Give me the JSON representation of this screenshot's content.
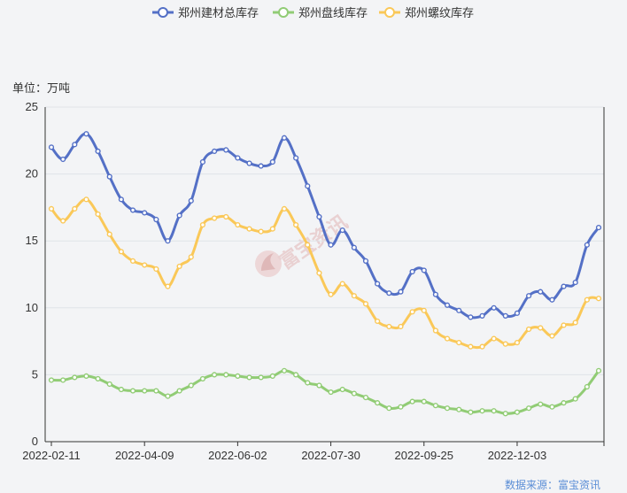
{
  "chart_data": {
    "type": "line",
    "unit_label": "单位：万吨",
    "source": "数据来源：富宝资讯",
    "watermark": "富宝资讯",
    "ylim": [
      0,
      25
    ],
    "yticks": [
      0,
      5,
      10,
      15,
      20,
      25
    ],
    "x_tick_labels": [
      "2022-02-11",
      "2022-04-09",
      "2022-06-02",
      "2022-07-30",
      "2022-09-25",
      "2022-12-03"
    ],
    "x_tick_indices": [
      0,
      8,
      16,
      24,
      32,
      40
    ],
    "legend_position": "top-center",
    "grid": true,
    "series": [
      {
        "name": "郑州建材总库存",
        "color": "#5470c6",
        "values": [
          22.0,
          21.1,
          22.2,
          23.0,
          21.7,
          19.8,
          18.1,
          17.3,
          17.1,
          16.6,
          15.0,
          16.9,
          18.0,
          20.9,
          21.7,
          21.8,
          21.2,
          20.8,
          20.6,
          20.9,
          22.7,
          21.2,
          19.1,
          16.8,
          14.7,
          15.8,
          14.5,
          13.5,
          11.8,
          11.1,
          11.2,
          12.7,
          12.8,
          11.0,
          10.2,
          9.8,
          9.3,
          9.4,
          10.0,
          9.4,
          9.6,
          10.9,
          11.2,
          10.6,
          11.6,
          11.9,
          14.7,
          16.0
        ]
      },
      {
        "name": "郑州盘线库存",
        "color": "#91cc75",
        "values": [
          4.6,
          4.6,
          4.8,
          4.9,
          4.7,
          4.3,
          3.9,
          3.8,
          3.8,
          3.8,
          3.4,
          3.8,
          4.2,
          4.7,
          5.0,
          5.0,
          4.9,
          4.8,
          4.8,
          4.9,
          5.3,
          5.0,
          4.4,
          4.2,
          3.7,
          3.9,
          3.6,
          3.3,
          2.9,
          2.5,
          2.6,
          3.0,
          3.0,
          2.7,
          2.5,
          2.4,
          2.2,
          2.3,
          2.3,
          2.1,
          2.2,
          2.5,
          2.8,
          2.6,
          2.9,
          3.2,
          4.1,
          5.3
        ]
      },
      {
        "name": "郑州螺纹库存",
        "color": "#fac858",
        "values": [
          17.4,
          16.5,
          17.4,
          18.1,
          17.0,
          15.5,
          14.2,
          13.5,
          13.2,
          12.9,
          11.6,
          13.1,
          13.8,
          16.2,
          16.7,
          16.8,
          16.2,
          15.9,
          15.7,
          15.9,
          17.4,
          16.2,
          14.7,
          12.6,
          11.0,
          11.8,
          10.9,
          10.3,
          9.0,
          8.6,
          8.6,
          9.7,
          9.8,
          8.3,
          7.7,
          7.4,
          7.1,
          7.1,
          7.7,
          7.3,
          7.4,
          8.4,
          8.5,
          7.9,
          8.7,
          8.9,
          10.6,
          10.7
        ]
      }
    ]
  }
}
